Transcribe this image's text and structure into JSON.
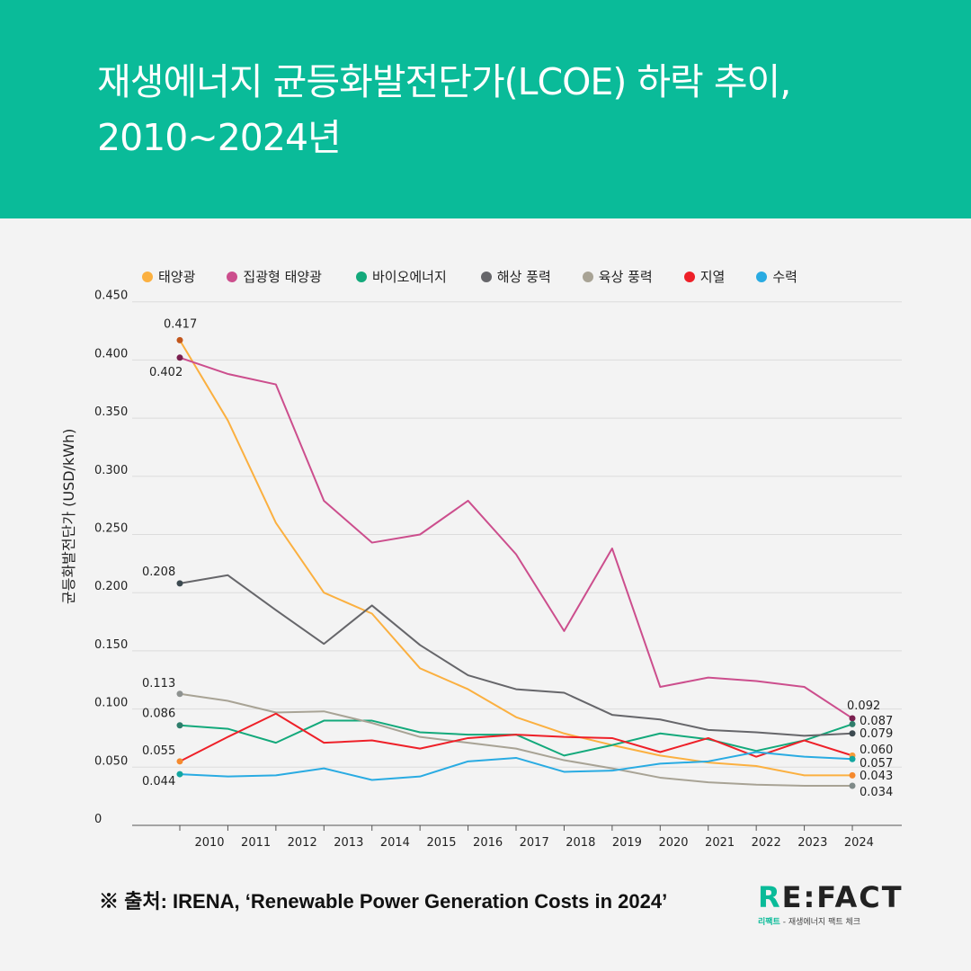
{
  "header": {
    "title_line1": "재생에너지 균등화발전단가(LCOE) 하락 추이,",
    "title_line2": "2010~2024년"
  },
  "source": "※ 출처: IRENA, ‘Renewable Power Generation Costs in 2024’",
  "logo": {
    "mark_r": "R",
    "mark_rest": "E:FACT",
    "sub_brand": "리팩트",
    "sub_text": " - 재생에너지 팩트 체크"
  },
  "chart_data": {
    "type": "line",
    "title": "재생에너지 균등화발전단가(LCOE) 하락 추이, 2010~2024년",
    "xlabel": "",
    "ylabel": "균등화발전단가 (USD/kWh)",
    "ylim": [
      0,
      0.45
    ],
    "yticks": [
      "0",
      "0.050",
      "0.100",
      "0.150",
      "0.200",
      "0.250",
      "0.300",
      "0.350",
      "0.400",
      "0.450"
    ],
    "x": [
      "2010",
      "2011",
      "2012",
      "2013",
      "2014",
      "2015",
      "2016",
      "2017",
      "2018",
      "2019",
      "2020",
      "2021",
      "2022",
      "2023",
      "2024"
    ],
    "grid": true,
    "legend": "top",
    "series": [
      {
        "name": "태양광",
        "color": "#FBB040",
        "end_color": "#F58A2E",
        "start_color": "#C2561B",
        "values": [
          0.417,
          0.348,
          0.26,
          0.2,
          0.182,
          0.135,
          0.117,
          0.093,
          0.079,
          0.069,
          0.06,
          0.054,
          0.051,
          0.043,
          0.043
        ],
        "start_label": "0.417",
        "end_label": "0.043"
      },
      {
        "name": "집광형 태양광",
        "color": "#CC4E8D",
        "end_color": "#7A1F4F",
        "start_color": "#7A1F4F",
        "values": [
          0.402,
          0.388,
          0.379,
          0.279,
          0.243,
          0.25,
          0.279,
          0.233,
          0.167,
          0.238,
          0.119,
          0.127,
          0.124,
          0.119,
          0.092
        ],
        "start_label": "0.402",
        "end_label": "0.092"
      },
      {
        "name": "바이오에너지",
        "color": "#13A97B",
        "end_color": "#2E7D6B",
        "start_color": "#2E7D6B",
        "values": [
          0.086,
          0.083,
          0.071,
          0.09,
          0.09,
          0.08,
          0.078,
          0.078,
          0.06,
          0.069,
          0.079,
          0.074,
          0.064,
          0.073,
          0.087
        ],
        "start_label": "0.086",
        "end_label": "0.087"
      },
      {
        "name": "해상 풍력",
        "color": "#66666A",
        "end_color": "#3C4A50",
        "start_color": "#3C4A50",
        "values": [
          0.208,
          0.215,
          0.185,
          0.156,
          0.189,
          0.155,
          0.129,
          0.117,
          0.114,
          0.095,
          0.091,
          0.082,
          0.08,
          0.077,
          0.079
        ],
        "start_label": "0.208",
        "end_label": "0.079"
      },
      {
        "name": "육상 풍력",
        "color": "#A8A395",
        "end_color": "#7F8A88",
        "start_color": "#8E9290",
        "values": [
          0.113,
          0.107,
          0.097,
          0.098,
          0.088,
          0.076,
          0.071,
          0.066,
          0.056,
          0.049,
          0.041,
          0.037,
          0.035,
          0.034,
          0.034
        ],
        "start_label": "0.113",
        "end_label": "0.034"
      },
      {
        "name": "지열",
        "color": "#EE2028",
        "end_color": "#F59A3A",
        "start_color": "#F58A2E",
        "values": [
          0.055,
          0.076,
          0.096,
          0.071,
          0.073,
          0.066,
          0.075,
          0.078,
          0.076,
          0.075,
          0.063,
          0.075,
          0.059,
          0.073,
          0.06
        ],
        "start_label": "0.055",
        "end_label": "0.060"
      },
      {
        "name": "수력",
        "color": "#29ABE2",
        "end_color": "#12A6A0",
        "start_color": "#12A6A0",
        "values": [
          0.044,
          0.042,
          0.043,
          0.049,
          0.039,
          0.042,
          0.055,
          0.058,
          0.046,
          0.047,
          0.053,
          0.055,
          0.063,
          0.059,
          0.057
        ],
        "start_label": "0.044",
        "end_label": "0.057"
      }
    ]
  }
}
